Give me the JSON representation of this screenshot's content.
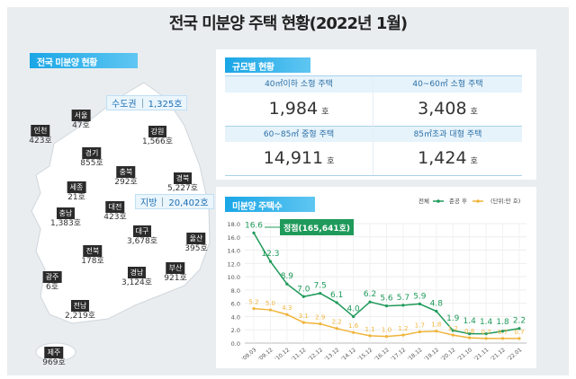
{
  "title": "전국 미분양 주택 현황(2022년 1월)",
  "map": {
    "tag": "전국 미분양 현황",
    "capital": {
      "label": "수도권",
      "value": "1,325호"
    },
    "provinces": {
      "label": "지방",
      "value": "20,402호"
    },
    "regions": [
      {
        "name": "서울",
        "value": "47호"
      },
      {
        "name": "인천",
        "value": "423호"
      },
      {
        "name": "강원",
        "value": "1,566호"
      },
      {
        "name": "경기",
        "value": "855호"
      },
      {
        "name": "충북",
        "value": "292호"
      },
      {
        "name": "경북",
        "value": "5,227호"
      },
      {
        "name": "세종",
        "value": "21호"
      },
      {
        "name": "대전",
        "value": "423호"
      },
      {
        "name": "충남",
        "value": "1,383호"
      },
      {
        "name": "대구",
        "value": "3,678호"
      },
      {
        "name": "울산",
        "value": "395호"
      },
      {
        "name": "전북",
        "value": "178호"
      },
      {
        "name": "광주",
        "value": "6호"
      },
      {
        "name": "경남",
        "value": "3,124호"
      },
      {
        "name": "부산",
        "value": "921호"
      },
      {
        "name": "전남",
        "value": "2,219호"
      },
      {
        "name": "제주",
        "value": "969호"
      }
    ]
  },
  "size": {
    "tag": "규모별 현황",
    "items": [
      {
        "label": "40㎡이하 소형 주택",
        "value": "1,984",
        "unit": "호"
      },
      {
        "label": "40~60㎡ 소형 주택",
        "value": "3,408",
        "unit": "호"
      },
      {
        "label": "60~85㎡ 중형 주택",
        "value": "14,911",
        "unit": "호"
      },
      {
        "label": "85㎡초과 대형 주택",
        "value": "1,424",
        "unit": "호"
      }
    ]
  },
  "chart_data": {
    "type": "line",
    "title": "미분양 주택수",
    "unit_note": "(단위:만 호)",
    "categories": [
      "'09.03",
      "'09.12",
      "'10.12",
      "'11.12",
      "'12.12",
      "'13.12",
      "'14.12",
      "'15.12",
      "'16.12",
      "'17.12",
      "'18.12",
      "'19.12",
      "'20.12",
      "'21.10",
      "'21.11",
      "'21.12",
      "'22.01"
    ],
    "series": [
      {
        "name": "전체",
        "color": "#1f9a5a",
        "values": [
          16.6,
          12.3,
          8.9,
          7.0,
          7.5,
          6.1,
          4.0,
          6.2,
          5.6,
          5.7,
          5.9,
          4.8,
          1.9,
          1.4,
          1.4,
          1.8,
          2.2
        ]
      },
      {
        "name": "준공 후",
        "color": "#f0b43a",
        "values": [
          5.2,
          5.0,
          4.3,
          3.1,
          2.9,
          2.2,
          1.6,
          1.1,
          1.0,
          1.2,
          1.7,
          1.8,
          1.2,
          0.8,
          0.7,
          0.7,
          0.7
        ]
      }
    ],
    "ylim": [
      0,
      18
    ],
    "yticks": [
      "0.0",
      "2.0",
      "4.0",
      "6.0",
      "8.0",
      "10.0",
      "12.0",
      "14.0",
      "16.0",
      "18.0"
    ],
    "annotation": "정점(165,641호)",
    "grid": true,
    "legend": "top-right"
  }
}
